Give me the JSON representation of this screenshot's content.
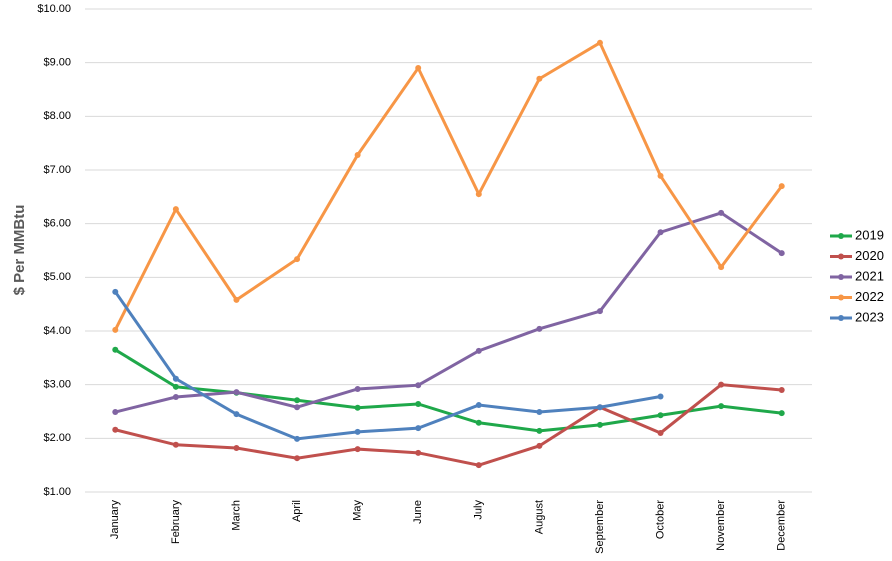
{
  "chart_data": {
    "type": "line",
    "y_label": "$ Per MMBtu",
    "categories": [
      "January",
      "February",
      "March",
      "April",
      "May",
      "June",
      "July",
      "August",
      "September",
      "October",
      "November",
      "December"
    ],
    "series": [
      {
        "name": "2019",
        "color": "#1fa84a",
        "values": [
          3.65,
          2.96,
          2.85,
          2.71,
          2.57,
          2.64,
          2.29,
          2.14,
          2.25,
          2.43,
          2.6,
          2.47
        ]
      },
      {
        "name": "2020",
        "color": "#c0504d",
        "values": [
          2.16,
          1.88,
          1.82,
          1.63,
          1.8,
          1.73,
          1.5,
          1.86,
          2.58,
          2.1,
          3.0,
          2.9
        ]
      },
      {
        "name": "2021",
        "color": "#8064a2",
        "values": [
          2.49,
          2.77,
          2.86,
          2.58,
          2.92,
          2.99,
          3.63,
          4.04,
          4.37,
          5.84,
          6.2,
          5.45
        ]
      },
      {
        "name": "2022",
        "color": "#f79646",
        "values": [
          4.02,
          6.27,
          4.58,
          5.34,
          7.28,
          8.9,
          6.55,
          8.7,
          9.37,
          6.89,
          5.19,
          6.7
        ]
      },
      {
        "name": "2023",
        "color": "#4f81bd",
        "values": [
          4.73,
          3.11,
          2.45,
          1.99,
          2.12,
          2.19,
          2.62,
          2.49,
          2.58,
          2.78,
          null,
          null
        ]
      }
    ],
    "ylim": [
      1,
      10
    ],
    "yticks": [
      {
        "value": 1,
        "label": "$1.00"
      },
      {
        "value": 2,
        "label": "$2.00"
      },
      {
        "value": 3,
        "label": "$3.00"
      },
      {
        "value": 4,
        "label": "$4.00"
      },
      {
        "value": 5,
        "label": "$5.00"
      },
      {
        "value": 6,
        "label": "$6.00"
      },
      {
        "value": 7,
        "label": "$7.00"
      },
      {
        "value": 8,
        "label": "$8.00"
      },
      {
        "value": 9,
        "label": "$9.00"
      },
      {
        "value": 10,
        "label": "$10.00"
      }
    ],
    "grid": true,
    "legend": "right"
  }
}
